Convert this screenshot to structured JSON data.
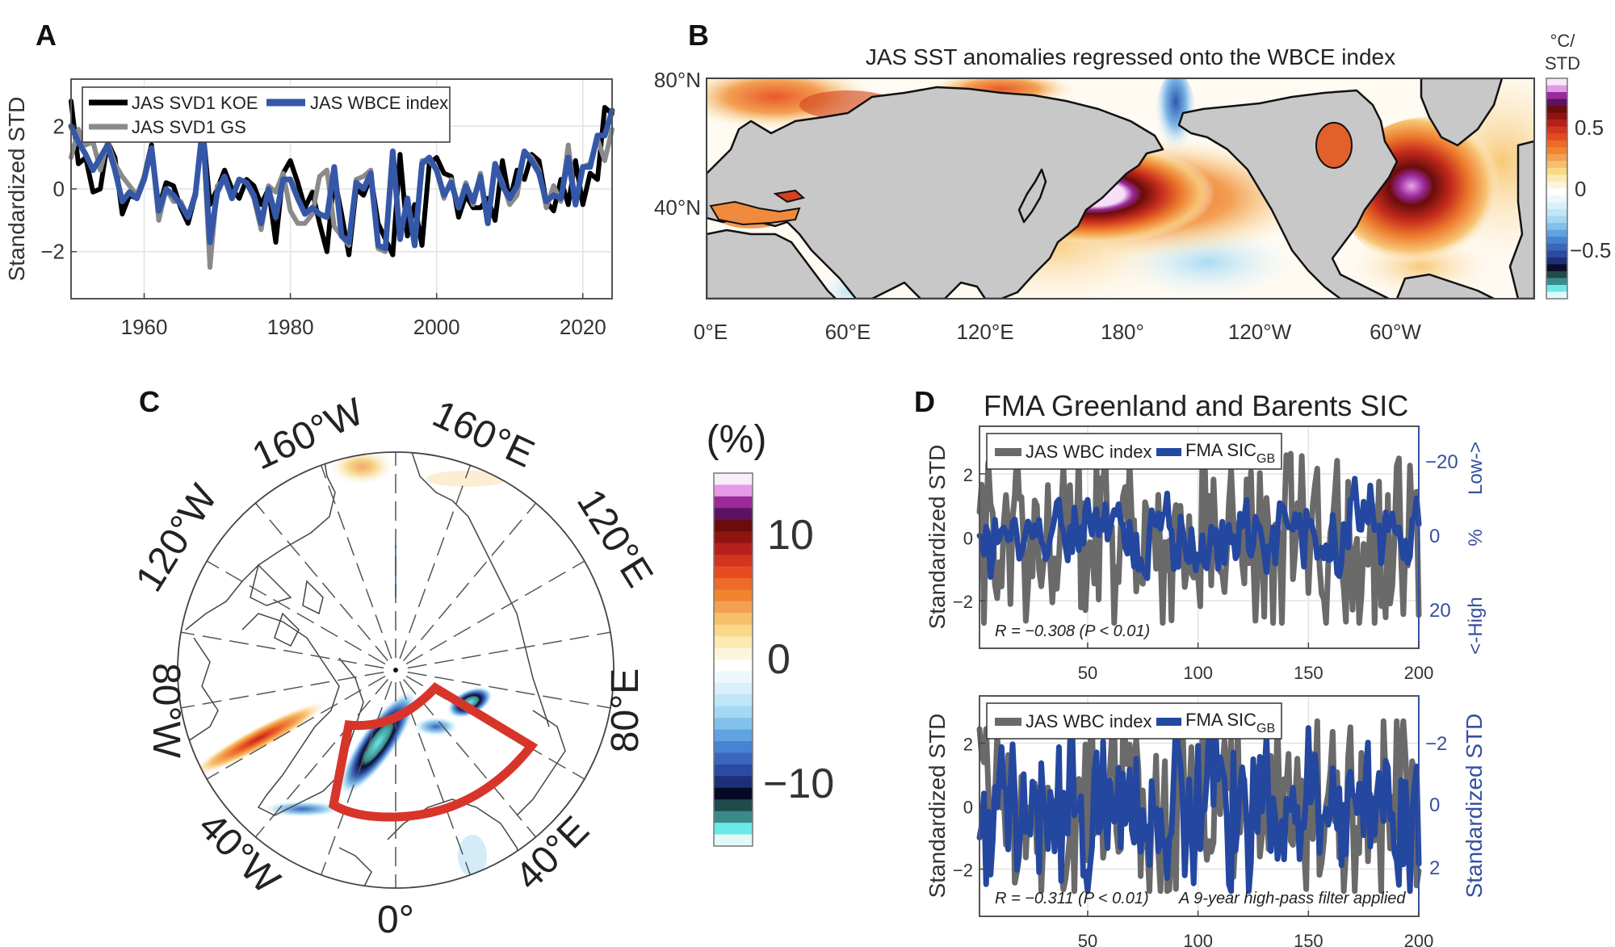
{
  "figure": {
    "panel_letters": [
      "A",
      "B",
      "C",
      "D"
    ]
  },
  "chart_data": [
    {
      "id": "A",
      "type": "line",
      "title": "",
      "xlabel": "",
      "ylabel": "Standardized STD",
      "xlim": [
        1950,
        2024
      ],
      "ylim": [
        -3.5,
        3.5
      ],
      "xticks": [
        1960,
        1980,
        2000,
        2020
      ],
      "yticks": [
        -2,
        0,
        2
      ],
      "ytick_labels": [
        "−2",
        "0",
        "2"
      ],
      "grid": true,
      "legend": {
        "position": "top-left",
        "entries": [
          "JAS SVD1 KOE",
          "JAS WBCE index",
          "JAS SVD1 GS"
        ]
      },
      "x": [
        1950,
        1951,
        1952,
        1953,
        1954,
        1955,
        1956,
        1957,
        1958,
        1959,
        1960,
        1961,
        1962,
        1963,
        1964,
        1965,
        1966,
        1967,
        1968,
        1969,
        1970,
        1971,
        1972,
        1973,
        1974,
        1975,
        1976,
        1977,
        1978,
        1979,
        1980,
        1981,
        1982,
        1983,
        1984,
        1985,
        1986,
        1987,
        1988,
        1989,
        1990,
        1991,
        1992,
        1993,
        1994,
        1995,
        1996,
        1997,
        1998,
        1999,
        2000,
        2001,
        2002,
        2003,
        2004,
        2005,
        2006,
        2007,
        2008,
        2009,
        2010,
        2011,
        2012,
        2013,
        2014,
        2015,
        2016,
        2017,
        2018,
        2019,
        2020,
        2021,
        2022,
        2023,
        2024
      ],
      "series": [
        {
          "name": "JAS SVD1 KOE",
          "color": "#000000",
          "values": [
            2.8,
            0.8,
            1.0,
            -0.1,
            0.0,
            1.5,
            1.0,
            -0.8,
            -0.2,
            -0.3,
            0.4,
            1.4,
            -0.6,
            0.2,
            0.1,
            -0.6,
            -1.1,
            -0.2,
            2.0,
            -0.5,
            0.0,
            0.6,
            0.0,
            -0.3,
            0.3,
            0.1,
            -0.5,
            0.0,
            -1.7,
            0.5,
            0.9,
            0.2,
            -0.6,
            -0.1,
            -1.1,
            -2.0,
            0.4,
            -0.8,
            -2.1,
            0.0,
            -0.2,
            0.4,
            -1.1,
            -1.6,
            -2.1,
            1.1,
            -1.5,
            -0.5,
            -1.8,
            0.8,
            1.0,
            0.5,
            0.4,
            -0.9,
            -0.2,
            -0.6,
            -0.6,
            -0.3,
            -1.0,
            0.9,
            -0.4,
            0.6,
            0.3,
            1.1,
            0.9,
            -0.4,
            -0.7,
            0.3,
            -0.5,
            0.9,
            -0.5,
            0.5,
            0.3,
            2.6,
            2.4
          ]
        },
        {
          "name": "JAS SVD1 GS",
          "color": "#8a8a8a",
          "values": [
            1.0,
            1.9,
            1.4,
            1.5,
            0.6,
            1.5,
            0.8,
            0.4,
            0.1,
            -0.2,
            0.4,
            1.3,
            -1.0,
            0.0,
            -0.4,
            -0.4,
            -0.9,
            -0.1,
            2.0,
            -2.5,
            0.1,
            0.3,
            -0.3,
            0.3,
            0.2,
            -0.3,
            -1.3,
            0.1,
            -0.1,
            0.5,
            -0.7,
            -1.1,
            -1.1,
            -0.8,
            0.4,
            0.6,
            -1.2,
            -1.5,
            -1.8,
            0.3,
            0.4,
            0.6,
            -1.9,
            -2.0,
            1.1,
            -1.6,
            -0.4,
            -1.7,
            0.9,
            0.9,
            0.6,
            -0.3,
            0.3,
            -0.6,
            0.2,
            -0.5,
            0.5,
            -1.1,
            0.8,
            0.2,
            -0.5,
            -0.2,
            1.2,
            1.0,
            0.6,
            -0.6,
            0.1,
            -0.4,
            1.4,
            -0.5,
            0.7,
            0.8,
            1.6,
            0.9,
            1.9
          ]
        },
        {
          "name": "JAS WBCE index",
          "color": "#3557a8",
          "values": [
            2.0,
            1.5,
            1.1,
            0.6,
            1.0,
            1.4,
            0.6,
            -0.4,
            -0.1,
            -0.3,
            0.3,
            1.3,
            -0.7,
            0.0,
            -0.2,
            -0.5,
            -0.9,
            -0.2,
            2.0,
            -1.7,
            -0.1,
            0.4,
            -0.3,
            0.3,
            0.2,
            -0.2,
            -1.1,
            0.0,
            -0.9,
            0.3,
            0.3,
            -0.3,
            -0.8,
            -0.6,
            -0.8,
            -0.9,
            0.7,
            -1.5,
            -1.7,
            0.2,
            0.0,
            0.5,
            -1.8,
            -1.9,
            1.2,
            -1.6,
            -0.3,
            -1.8,
            0.8,
            1.0,
            0.6,
            -0.2,
            0.2,
            -0.6,
            0.1,
            -0.4,
            0.4,
            -1.1,
            0.8,
            0.1,
            -0.3,
            0.1,
            1.2,
            0.9,
            0.5,
            -0.4,
            -0.2,
            -0.3,
            1.0,
            -0.5,
            0.7,
            0.7,
            1.7,
            1.7,
            2.5
          ]
        }
      ]
    },
    {
      "id": "B",
      "type": "heatmap",
      "title": "JAS SST anomalies regressed onto the WBCE index",
      "xlabel": "",
      "ylabel": "",
      "xticks": [
        "0°E",
        "60°E",
        "120°E",
        "180°",
        "120°W",
        "60°W"
      ],
      "yticks": [
        "80°N",
        "40°N"
      ],
      "colorbar": {
        "label_line1": "°C/",
        "label_line2": "STD",
        "ticks": [
          "0.5",
          "0",
          "−0.5"
        ],
        "tick_values": [
          0.5,
          0,
          -0.5
        ],
        "range": [
          -0.9,
          0.9
        ],
        "colors": [
          "#f7e8f7",
          "#e19ae6",
          "#9a2a9c",
          "#5d1260",
          "#6a0c0c",
          "#8f1410",
          "#b7201a",
          "#d3341f",
          "#e64a22",
          "#ee6a27",
          "#f1852f",
          "#f3a052",
          "#f6bf6b",
          "#f9d886",
          "#fbeab2",
          "#fdf4e0",
          "#ffffff",
          "#eef8fc",
          "#d8f0fa",
          "#bfe5f6",
          "#a4d8f2",
          "#82c1ec",
          "#5fa3e0",
          "#4683d0",
          "#3a66be",
          "#2c4aa0",
          "#1d2f78",
          "#0a0c2a",
          "#1f4b4b",
          "#3a8a8c",
          "#6de8e8",
          "#e3f8f8"
        ]
      },
      "features": [
        {
          "name": "Kuroshio Extension warm anomaly",
          "approx_value": 0.85
        },
        {
          "name": "Gulf Stream warm anomaly",
          "approx_value": 0.8
        },
        {
          "name": "Bering Strait cool anomaly",
          "approx_value": -0.45
        }
      ],
      "land_color": "#c8c8c8"
    },
    {
      "id": "C",
      "type": "heatmap",
      "projection": "north polar stereographic",
      "longitude_labels": [
        "160°W",
        "160°E",
        "120°W",
        "120°E",
        "80°W",
        "80°E",
        "40°W",
        "40°E",
        "0°"
      ],
      "colorbar": {
        "label": "(%)",
        "ticks": [
          "10",
          "0",
          "−10"
        ],
        "tick_values": [
          10,
          0,
          -10
        ],
        "range": [
          -15,
          15
        ],
        "colors": [
          "#f7eef7",
          "#e49ae6",
          "#9a2a9c",
          "#5d1260",
          "#6a0c0c",
          "#8f1410",
          "#b7201a",
          "#d3341f",
          "#e64a22",
          "#ee6a27",
          "#f1852f",
          "#f3a052",
          "#f6bf6b",
          "#f9d886",
          "#fbeab2",
          "#fdf4e0",
          "#ffffff",
          "#eef8fc",
          "#d8f0fa",
          "#bfe5f6",
          "#a4d8f2",
          "#82c1ec",
          "#5fa3e0",
          "#4683d0",
          "#3a66be",
          "#2c4aa0",
          "#1d2f78",
          "#050a24",
          "#1f4b4b",
          "#3a8a8c",
          "#6de8e8",
          "#e3f8f8"
        ]
      },
      "region_box": {
        "label": "Greenland and Barents Sea region",
        "color": "#d8352a"
      },
      "features": [
        {
          "name": "Greenland Sea SIC decrease",
          "approx_value": -13
        },
        {
          "name": "Barents Sea SIC decrease",
          "approx_value": -12
        },
        {
          "name": "Labrador/Baffin positive anomaly",
          "approx_value": 9
        }
      ]
    },
    {
      "id": "D1",
      "type": "line",
      "title": "FMA Greenland and Barents SIC",
      "xlabel": "",
      "ylabel": "Standardized STD",
      "ylabel_right": [
        "<-High",
        "%",
        "Low->"
      ],
      "xlim": [
        1,
        200
      ],
      "ylim": [
        -3.5,
        3.5
      ],
      "ylim_right": [
        -30,
        30
      ],
      "xticks": [
        50,
        100,
        150,
        200
      ],
      "yticks": [
        -2,
        0,
        2
      ],
      "ytick_labels": [
        "−2",
        "0",
        "2"
      ],
      "yticks_right": [
        "−20",
        "0",
        "20"
      ],
      "right_axis_inverted": true,
      "grid": true,
      "legend": {
        "position": "top-left",
        "entries": [
          "JAS WBC index",
          "FMA SIC_GB"
        ]
      },
      "annotation": "R = −0.308 (P < 0.01)",
      "series": [
        {
          "name": "JAS WBC index",
          "color": "#6a6a6a",
          "generator": "seed-a",
          "amplitude": 1.1
        },
        {
          "name": "FMA SIC_GB",
          "color": "#2447a0",
          "generator": "seed-b",
          "amplitude": 0.8
        }
      ]
    },
    {
      "id": "D2",
      "type": "line",
      "title": "",
      "xlabel": "",
      "ylabel": "Standardized STD",
      "ylabel_right": [
        "Standardized STD"
      ],
      "xlim": [
        1,
        200
      ],
      "ylim": [
        -3.5,
        3.5
      ],
      "xticks": [
        50,
        100,
        150,
        200
      ],
      "yticks": [
        -2,
        0,
        2
      ],
      "ytick_labels": [
        "−2",
        "0",
        "2"
      ],
      "yticks_right": [
        "−2",
        "0",
        "2"
      ],
      "right_axis_inverted": true,
      "grid": true,
      "legend": {
        "position": "top-left",
        "entries": [
          "JAS WBC index",
          "FMA SIC_GB"
        ]
      },
      "annotation": "R = −0.311 (P < 0.01)",
      "annotation2": "A 9-year high-pass filter applied",
      "series": [
        {
          "name": "JAS WBC index",
          "color": "#6a6a6a",
          "generator": "seed-c",
          "amplitude": 1.1
        },
        {
          "name": "FMA SIC_GB",
          "color": "#2447a0",
          "generator": "seed-d",
          "amplitude": 1.1
        }
      ]
    }
  ],
  "labels": {
    "sic_sub": "GB",
    "sic_main": "FMA SIC"
  }
}
